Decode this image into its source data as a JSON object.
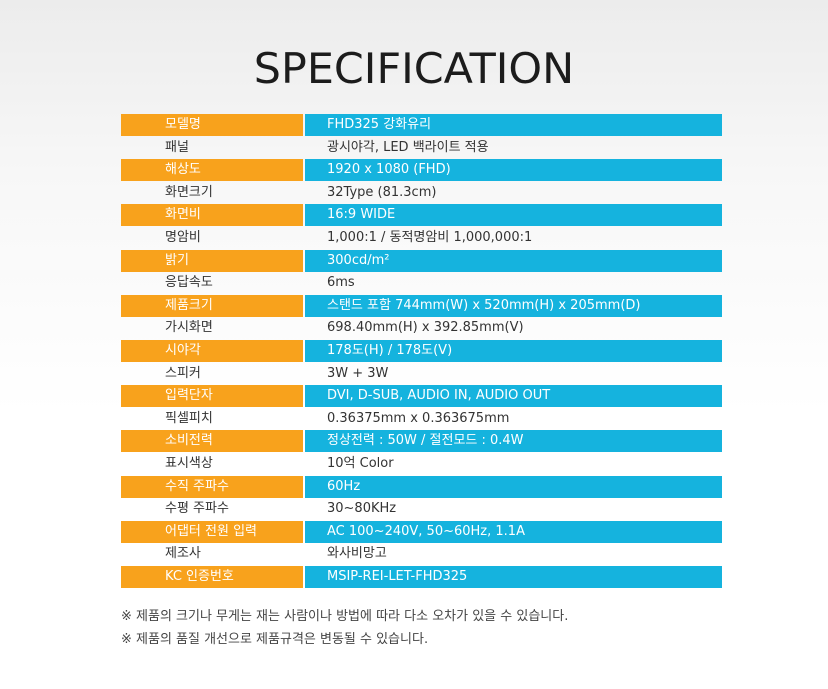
{
  "title": "SPECIFICATION",
  "colors": {
    "label_bg": "#f8a21c",
    "value_bg": "#15b3de"
  },
  "rows": [
    {
      "label": "모델명",
      "value": "FHD325 강화유리",
      "highlight": true
    },
    {
      "label": "패널",
      "value": "광시야각, LED 백라이트 적용",
      "highlight": false
    },
    {
      "label": "해상도",
      "value": "1920 x 1080 (FHD)",
      "highlight": true
    },
    {
      "label": "화면크기",
      "value": "32Type (81.3cm)",
      "highlight": false
    },
    {
      "label": "화면비",
      "value": "16:9 WIDE",
      "highlight": true
    },
    {
      "label": "명암비",
      "value": "1,000:1 / 동적명암비 1,000,000:1",
      "highlight": false
    },
    {
      "label": "밝기",
      "value": "300cd/m²",
      "highlight": true
    },
    {
      "label": "응답속도",
      "value": " 6ms",
      "highlight": false
    },
    {
      "label": "제품크기",
      "value": "스탠드 포함 744mm(W) x 520mm(H) x 205mm(D)",
      "highlight": true
    },
    {
      "label": "가시화면",
      "value": "698.40mm(H) x 392.85mm(V)",
      "highlight": false
    },
    {
      "label": "시야각",
      "value": "178도(H) / 178도(V)",
      "highlight": true
    },
    {
      "label": "스피커",
      "value": "3W + 3W",
      "highlight": false
    },
    {
      "label": "입력단자",
      "value": "DVI, D-SUB, AUDIO IN, AUDIO OUT",
      "highlight": true
    },
    {
      "label": "픽셀피치",
      "value": "0.36375mm x 0.363675mm",
      "highlight": false
    },
    {
      "label": "소비전력",
      "value": "정상전력 : 50W / 절전모드 : 0.4W",
      "highlight": true
    },
    {
      "label": "표시색상",
      "value": "10억 Color",
      "highlight": false
    },
    {
      "label": "수직 주파수",
      "value": "60Hz",
      "highlight": true
    },
    {
      "label": "수평 주파수",
      "value": "30~80KHz",
      "highlight": false
    },
    {
      "label": "어댑터 전원 입력",
      "value": "AC 100~240V, 50~60Hz, 1.1A",
      "highlight": true
    },
    {
      "label": "제조사",
      "value": "와사비망고",
      "highlight": false
    },
    {
      "label": "KC 인증번호",
      "value": "MSIP-REI-LET-FHD325",
      "highlight": true
    }
  ],
  "notes": [
    "※ 제품의 크기나 무게는 재는 사람이나 방법에 따라 다소 오차가 있을 수 있습니다.",
    "※ 제품의 품질 개선으로 제품규격은 변동될 수 있습니다."
  ]
}
